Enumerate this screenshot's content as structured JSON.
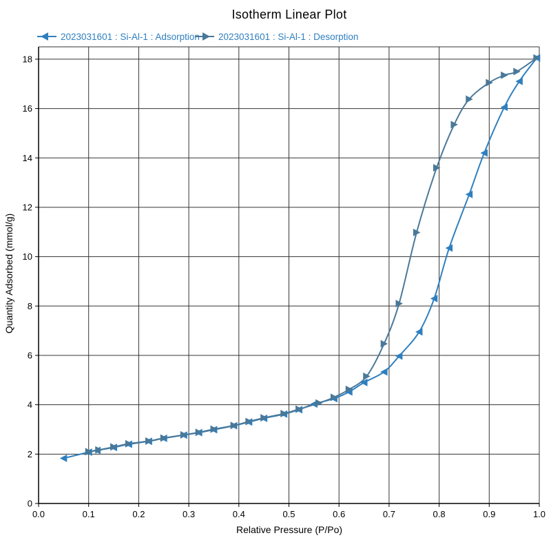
{
  "chart_data": {
    "type": "line",
    "title": "Isotherm Linear Plot",
    "xlabel": "Relative Pressure (P/Po)",
    "ylabel": "Quantity Adsorbed (mmol/g)",
    "xlim": [
      0.0,
      1.0
    ],
    "ylim": [
      0,
      18.5
    ],
    "xticks": [
      0.0,
      0.1,
      0.2,
      0.3,
      0.4,
      0.5,
      0.6,
      0.7,
      0.8,
      0.9,
      1.0
    ],
    "xtick_labels": [
      "0.0",
      "0.1",
      "0.2",
      "0.3",
      "0.4",
      "0.5",
      "0.6",
      "0.7",
      "0.8",
      "0.9",
      "1.0"
    ],
    "yticks": [
      0,
      2,
      4,
      6,
      8,
      10,
      12,
      14,
      16,
      18
    ],
    "ytick_labels": [
      "0",
      "2",
      "4",
      "6",
      "8",
      "10",
      "12",
      "14",
      "16",
      "18"
    ],
    "grid": true,
    "legend_position": "top",
    "series": [
      {
        "name": "2023031601 : Si-Al-1 : Adsorption",
        "color": "#2f7fbf",
        "marker": "left-triangle",
        "points": [
          [
            0.05,
            1.83
          ],
          [
            0.1,
            2.08
          ],
          [
            0.117,
            2.15
          ],
          [
            0.15,
            2.27
          ],
          [
            0.18,
            2.4
          ],
          [
            0.22,
            2.52
          ],
          [
            0.25,
            2.64
          ],
          [
            0.29,
            2.77
          ],
          [
            0.32,
            2.87
          ],
          [
            0.35,
            2.99
          ],
          [
            0.39,
            3.15
          ],
          [
            0.42,
            3.3
          ],
          [
            0.45,
            3.45
          ],
          [
            0.49,
            3.62
          ],
          [
            0.52,
            3.8
          ],
          [
            0.55,
            4.03
          ],
          [
            0.59,
            4.25
          ],
          [
            0.62,
            4.52
          ],
          [
            0.65,
            4.9
          ],
          [
            0.69,
            5.33
          ],
          [
            0.72,
            5.97
          ],
          [
            0.76,
            6.95
          ],
          [
            0.79,
            8.3
          ],
          [
            0.82,
            10.35
          ],
          [
            0.86,
            12.52
          ],
          [
            0.89,
            14.2
          ],
          [
            0.93,
            16.05
          ],
          [
            0.96,
            17.1
          ],
          [
            0.995,
            18.05
          ]
        ]
      },
      {
        "name": "2023031601 : Si-Al-1 : Desorption",
        "color": "#4a7898",
        "marker": "right-triangle",
        "points": [
          [
            0.995,
            18.05
          ],
          [
            0.955,
            17.5
          ],
          [
            0.93,
            17.35
          ],
          [
            0.9,
            17.05
          ],
          [
            0.86,
            16.38
          ],
          [
            0.83,
            15.35
          ],
          [
            0.795,
            13.6
          ],
          [
            0.755,
            10.98
          ],
          [
            0.72,
            8.1
          ],
          [
            0.69,
            6.47
          ],
          [
            0.655,
            5.15
          ],
          [
            0.62,
            4.62
          ],
          [
            0.59,
            4.3
          ],
          [
            0.56,
            4.07
          ],
          [
            0.52,
            3.82
          ],
          [
            0.49,
            3.64
          ],
          [
            0.45,
            3.47
          ],
          [
            0.42,
            3.32
          ],
          [
            0.39,
            3.16
          ],
          [
            0.35,
            3.01
          ],
          [
            0.32,
            2.88
          ],
          [
            0.29,
            2.78
          ],
          [
            0.25,
            2.65
          ],
          [
            0.22,
            2.53
          ],
          [
            0.18,
            2.42
          ],
          [
            0.15,
            2.29
          ],
          [
            0.12,
            2.17
          ],
          [
            0.1,
            2.1
          ]
        ]
      }
    ]
  }
}
